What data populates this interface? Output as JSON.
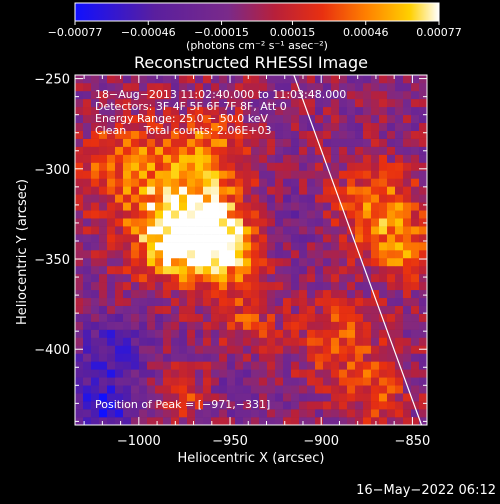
{
  "chart_data": {
    "type": "heatmap",
    "title": "Reconstructed RHESSI Image",
    "xlabel": "Heliocentric X (arcsec)",
    "ylabel": "Heliocentric Y (arcsec)",
    "xlim": [
      -1035,
      -842
    ],
    "ylim": [
      -442,
      -248
    ],
    "xticks": [
      -1000,
      -950,
      -900,
      -850
    ],
    "xtick_labels": [
      "−1000",
      "−950",
      "−900",
      "−850"
    ],
    "yticks": [
      -250,
      -300,
      -350,
      -400
    ],
    "ytick_labels": [
      "−250",
      "−300",
      "−350",
      "−400"
    ],
    "colorbar": {
      "range": [
        -0.00077,
        0.00077
      ],
      "ticks": [
        -0.00077,
        -0.00046,
        -0.00015,
        0.00015,
        0.00046,
        0.00077
      ],
      "tick_labels": [
        "−0.00077",
        "−0.00046",
        "−0.00015",
        "0.00015",
        "0.00046",
        "0.00077"
      ],
      "unit_label": "(photons cm⁻² s⁻¹ asec⁻²)",
      "colormap": [
        "#1010ff",
        "#5a1f9e",
        "#7a2a8a",
        "#b8203a",
        "#e83010",
        "#ff8000",
        "#ffd000",
        "#ffffff"
      ]
    },
    "annotations": [
      "18−Aug−2013 11:02:40.000 to 11:03:48.000",
      "Detectors: 3F 4F 5F 6F 7F 8F, Att 0",
      "Energy Range: 25.0 − 50.0 keV",
      "Clean     Total counts: 2.06E+03"
    ],
    "peak_label": "Position of Peak = [−971,−331]",
    "peak": [
      -971,
      -331
    ],
    "limb_line": [
      [
        -915,
        -248
      ],
      [
        -845,
        -442
      ]
    ],
    "blobs": [
      {
        "x": -970,
        "y": -330,
        "amp": 0.00077,
        "sigma": 18
      },
      {
        "x": -955,
        "y": -345,
        "amp": 0.0006,
        "sigma": 16
      },
      {
        "x": -1005,
        "y": -300,
        "amp": 0.0005,
        "sigma": 20
      },
      {
        "x": -960,
        "y": -290,
        "amp": 0.00045,
        "sigma": 15
      },
      {
        "x": -990,
        "y": -345,
        "amp": 0.00038,
        "sigma": 14
      },
      {
        "x": -940,
        "y": -385,
        "amp": 0.0003,
        "sigma": 12
      },
      {
        "x": -870,
        "y": -320,
        "amp": 0.0005,
        "sigma": 16
      },
      {
        "x": -855,
        "y": -345,
        "amp": 0.00045,
        "sigma": 14
      },
      {
        "x": -890,
        "y": -395,
        "amp": 0.0004,
        "sigma": 16
      },
      {
        "x": -870,
        "y": -425,
        "amp": 0.00035,
        "sigma": 12
      },
      {
        "x": -975,
        "y": -425,
        "amp": 0.0003,
        "sigma": 10
      },
      {
        "x": -1015,
        "y": -400,
        "amp": -0.0004,
        "sigma": 14
      },
      {
        "x": -1020,
        "y": -432,
        "amp": -0.00055,
        "sigma": 12
      },
      {
        "x": -920,
        "y": -330,
        "amp": -0.0002,
        "sigma": 12
      },
      {
        "x": -945,
        "y": -420,
        "amp": -0.00015,
        "sigma": 10
      }
    ]
  },
  "footer": {
    "date": "16−May−2022 06:12"
  }
}
